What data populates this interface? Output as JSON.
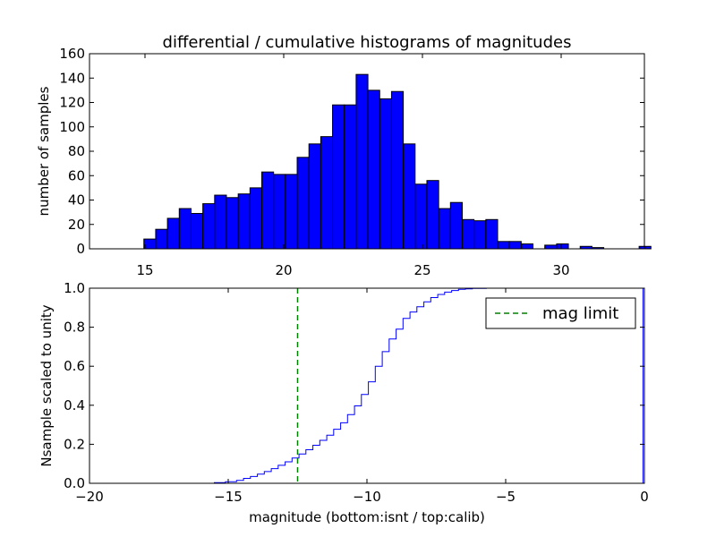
{
  "chart_data": [
    {
      "type": "bar",
      "title": "differential / cumulative histograms of magnitudes",
      "xlabel": "",
      "ylabel": "number of samples",
      "xlim": [
        13,
        33
      ],
      "ylim": [
        0,
        160
      ],
      "xticks": [
        "15",
        "20",
        "25",
        "30"
      ],
      "xtick_values": [
        15,
        20,
        25,
        30
      ],
      "yticks": [
        "0",
        "20",
        "40",
        "60",
        "80",
        "100",
        "120",
        "140",
        "160"
      ],
      "ytick_values": [
        0,
        20,
        40,
        60,
        80,
        100,
        120,
        140,
        160
      ],
      "x_tick_position": "bottom",
      "bin_width": 0.425,
      "bin_left_edges": [
        14.96,
        15.385,
        15.81,
        16.235,
        16.66,
        17.085,
        17.51,
        17.935,
        18.36,
        18.785,
        19.21,
        19.635,
        20.06,
        20.485,
        20.91,
        21.335,
        21.76,
        22.185,
        22.61,
        23.035,
        23.46,
        23.885,
        24.31,
        24.735,
        25.16,
        25.585,
        26.01,
        26.435,
        26.86,
        27.285,
        27.71,
        28.135,
        28.56,
        28.985,
        29.41,
        29.835,
        30.26,
        30.685,
        31.11,
        31.535,
        31.96,
        32.385,
        32.81
      ],
      "values": [
        8,
        16,
        25,
        33,
        29,
        37,
        44,
        42,
        45,
        50,
        63,
        61,
        61,
        75,
        86,
        92,
        118,
        118,
        143,
        130,
        123,
        129,
        86,
        53,
        56,
        33,
        38,
        24,
        23,
        24,
        6,
        6,
        4,
        0,
        3,
        4,
        0,
        2,
        1,
        0,
        0,
        0,
        2
      ],
      "bar_color": "#0000ff",
      "edge_color": "#000000"
    },
    {
      "type": "line",
      "subtype": "step",
      "title": "",
      "xlabel": "magnitude (bottom:isnt / top:calib)",
      "ylabel": "Nsample scaled to unity",
      "xlim": [
        -20,
        0
      ],
      "ylim": [
        0,
        1
      ],
      "xticks": [
        "−20",
        "−15",
        "−10",
        "−5",
        "0"
      ],
      "xtick_values": [
        -20,
        -15,
        -10,
        -5,
        0
      ],
      "yticks": [
        "0.0",
        "0.2",
        "0.4",
        "0.6",
        "0.8",
        "1.0"
      ],
      "ytick_values": [
        0,
        0.2,
        0.4,
        0.6,
        0.8,
        1.0
      ],
      "series": [
        {
          "name": "cumulative",
          "color": "#0000ff",
          "x": [
            -20,
            -15.5,
            -15.1,
            -14.7,
            -14.45,
            -14.2,
            -13.95,
            -13.7,
            -13.45,
            -13.2,
            -12.95,
            -12.7,
            -12.45,
            -12.2,
            -11.95,
            -11.7,
            -11.45,
            -11.2,
            -10.95,
            -10.7,
            -10.45,
            -10.2,
            -9.95,
            -9.7,
            -9.45,
            -9.2,
            -8.95,
            -8.7,
            -8.45,
            -8.2,
            -7.95,
            -7.7,
            -7.45,
            -7.2,
            -6.95,
            -6.7,
            -6.45,
            -6.2,
            -5.7,
            -0.05,
            -0.05
          ],
          "y": [
            0,
            0.003,
            0.008,
            0.015,
            0.025,
            0.035,
            0.047,
            0.06,
            0.075,
            0.092,
            0.11,
            0.13,
            0.15,
            0.172,
            0.195,
            0.22,
            0.247,
            0.277,
            0.31,
            0.352,
            0.397,
            0.455,
            0.52,
            0.6,
            0.675,
            0.74,
            0.79,
            0.845,
            0.878,
            0.905,
            0.93,
            0.952,
            0.968,
            0.98,
            0.988,
            0.994,
            0.997,
            0.999,
            1.0,
            1.0,
            0.0
          ]
        }
      ],
      "vline": {
        "x": -12.5,
        "color": "#008000",
        "style": "dashed",
        "label": "mag limit"
      },
      "legend": {
        "position": "top-right",
        "entries": [
          "mag limit"
        ]
      }
    }
  ]
}
